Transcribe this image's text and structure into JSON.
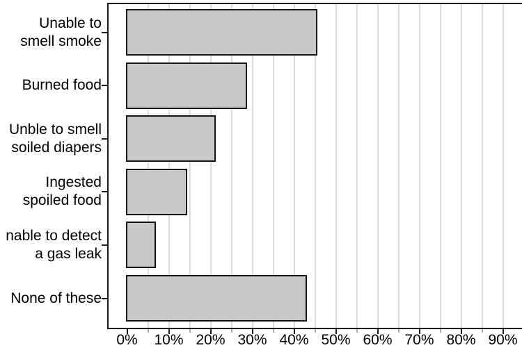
{
  "chart_data": {
    "type": "bar",
    "orientation": "horizontal",
    "title": "",
    "xlabel": "",
    "ylabel": "",
    "legend": null,
    "grid": "vertical gridlines every 5%",
    "categories": [
      [
        "Unable to",
        "smell smoke"
      ],
      [
        "Burned food"
      ],
      [
        "Unble to smell",
        "soiled diapers"
      ],
      [
        "Ingested",
        "spoiled food"
      ],
      [
        "nable to detect",
        "a gas leak"
      ],
      [
        "None of these"
      ]
    ],
    "values": [
      45.5,
      28.7,
      21.2,
      14.4,
      6.8,
      43.0
    ],
    "unit": "%",
    "x_tick_labels": [
      "0%",
      "10%",
      "20%",
      "30%",
      "40%",
      "50%",
      "60%",
      "70%",
      "80%",
      "90%"
    ],
    "x_ticks_pct": [
      0,
      10,
      20,
      30,
      40,
      50,
      60,
      70,
      80,
      90
    ],
    "minor_ticks_pct": [
      5,
      15,
      25,
      35,
      45,
      55,
      65,
      75,
      85
    ],
    "gridline_pct_step": 5,
    "xlim": [
      0,
      94
    ],
    "colors": {
      "bar_fill": "#c9c9c9",
      "bar_border": "#141414",
      "gridline": "#dcdcdc",
      "axis_frame": "#1a1a1a",
      "tick_major": "#1a1a1a",
      "tick_minor": "#ababab",
      "text": "#000000",
      "background": "#ffffff"
    }
  }
}
